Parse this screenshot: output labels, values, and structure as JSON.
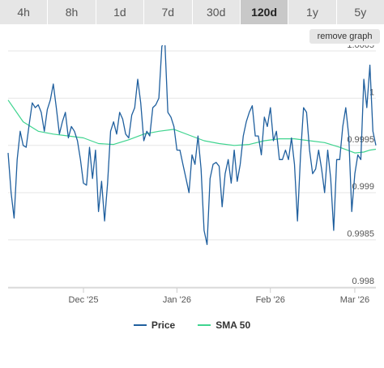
{
  "range_tabs": [
    {
      "label": "4h",
      "active": false
    },
    {
      "label": "8h",
      "active": false
    },
    {
      "label": "1d",
      "active": false
    },
    {
      "label": "7d",
      "active": false
    },
    {
      "label": "30d",
      "active": false
    },
    {
      "label": "120d",
      "active": true
    },
    {
      "label": "1y",
      "active": false
    },
    {
      "label": "5y",
      "active": false
    }
  ],
  "remove_graph_label": "remove graph",
  "colors": {
    "price": "#1f5f9e",
    "sma": "#3fd48f",
    "grid": "#e6e6e6",
    "text": "#555555"
  },
  "legend": {
    "price_label": "Price",
    "sma_label": "SMA 50"
  },
  "chart_data": {
    "type": "line",
    "title": "",
    "xlabel": "",
    "ylabel": "",
    "x_tick_labels": [
      "Dec '25",
      "Jan '26",
      "Feb '26",
      "Mar '26"
    ],
    "y_tick_labels": [
      "1.0005",
      "1",
      "0.9995",
      "0.999",
      "0.9985",
      "0.998"
    ],
    "yticks": [
      1.0005,
      1.0,
      0.9995,
      0.999,
      0.9985,
      0.998
    ],
    "ylim": [
      0.998,
      1.0005
    ],
    "y_scale": "reversed",
    "grid": "horizontal",
    "legend_position": "bottom",
    "x_range_days": [
      -33,
      89
    ],
    "x_tick_days": [
      -8,
      23,
      54,
      82
    ],
    "series": [
      {
        "name": "Price",
        "color": "#1f5f9e",
        "x": [
          -33,
          -32,
          -31,
          -30,
          -29,
          -28,
          -27,
          -26,
          -25,
          -24,
          -23,
          -22,
          -21,
          -20,
          -19,
          -18,
          -17,
          -16,
          -15,
          -14,
          -13,
          -12,
          -11,
          -10,
          -9,
          -8,
          -7,
          -6,
          -5,
          -4,
          -3,
          -2,
          -1,
          0,
          1,
          2,
          3,
          4,
          5,
          6,
          7,
          8,
          9,
          10,
          11,
          12,
          13,
          14,
          15,
          16,
          17,
          18,
          19,
          20,
          21,
          22,
          23,
          24,
          25,
          26,
          27,
          28,
          29,
          30,
          31,
          32,
          33,
          34,
          35,
          36,
          37,
          38,
          39,
          40,
          41,
          42,
          43,
          44,
          45,
          46,
          47,
          48,
          49,
          50,
          51,
          52,
          53,
          54,
          55,
          56,
          57,
          58,
          59,
          60,
          61,
          62,
          63,
          64,
          65,
          66,
          67,
          68,
          69,
          70,
          71,
          72,
          73,
          74,
          75,
          76,
          77,
          78,
          79,
          80,
          81,
          82,
          83,
          84,
          85,
          86,
          87,
          88,
          89
        ],
        "y": [
          0.99942,
          0.999,
          0.99873,
          0.99935,
          0.99965,
          0.9995,
          0.99948,
          0.99972,
          0.99995,
          0.9999,
          0.99993,
          0.99985,
          0.99965,
          0.99988,
          0.99998,
          1.00015,
          0.9999,
          0.99962,
          0.99975,
          0.99985,
          0.99958,
          0.9997,
          0.99965,
          0.99955,
          0.99935,
          0.9991,
          0.99908,
          0.99948,
          0.99915,
          0.99945,
          0.9988,
          0.99912,
          0.9987,
          0.9991,
          0.99965,
          0.99975,
          0.99962,
          0.99985,
          0.99978,
          0.99962,
          0.99958,
          0.99982,
          0.9999,
          1.0002,
          0.99995,
          0.99955,
          0.99965,
          0.9996,
          0.9999,
          0.99993,
          1.0,
          1.00055,
          1.0006,
          0.99985,
          0.9998,
          0.9997,
          0.99945,
          0.99945,
          0.9993,
          0.99915,
          0.999,
          0.9994,
          0.9993,
          0.9996,
          0.99925,
          0.9986,
          0.99845,
          0.99915,
          0.9993,
          0.99932,
          0.99928,
          0.99885,
          0.9992,
          0.99935,
          0.9991,
          0.99945,
          0.99912,
          0.9993,
          0.9996,
          0.99975,
          0.99985,
          0.99992,
          0.9996,
          0.9996,
          0.9994,
          0.9998,
          0.9997,
          0.9999,
          0.99955,
          0.99965,
          0.99935,
          0.99935,
          0.99945,
          0.99935,
          0.99958,
          0.9993,
          0.9987,
          0.9994,
          0.9999,
          0.99985,
          0.99945,
          0.9992,
          0.99925,
          0.99945,
          0.99925,
          0.999,
          0.99945,
          0.99915,
          0.9986,
          0.99935,
          0.99935,
          0.9997,
          0.9999,
          0.9996,
          0.9988,
          0.9992,
          0.9994,
          0.99935,
          1.0002,
          0.9999,
          1.00035,
          0.99965,
          0.9995
        ]
      },
      {
        "name": "SMA 50",
        "color": "#3fd48f",
        "x": [
          -33,
          -28,
          -23,
          -18,
          -13,
          -8,
          -3,
          2,
          7,
          12,
          17,
          22,
          27,
          32,
          37,
          42,
          47,
          52,
          57,
          62,
          67,
          72,
          77,
          82,
          85,
          87,
          89
        ],
        "y": [
          0.99998,
          0.99975,
          0.99965,
          0.99962,
          0.9996,
          0.99958,
          0.99952,
          0.99951,
          0.99956,
          0.99962,
          0.99965,
          0.99967,
          0.99961,
          0.99955,
          0.99952,
          0.9995,
          0.99951,
          0.99955,
          0.99957,
          0.99957,
          0.99955,
          0.99953,
          0.99948,
          0.99942,
          0.99943,
          0.99945,
          0.99946
        ]
      }
    ]
  }
}
